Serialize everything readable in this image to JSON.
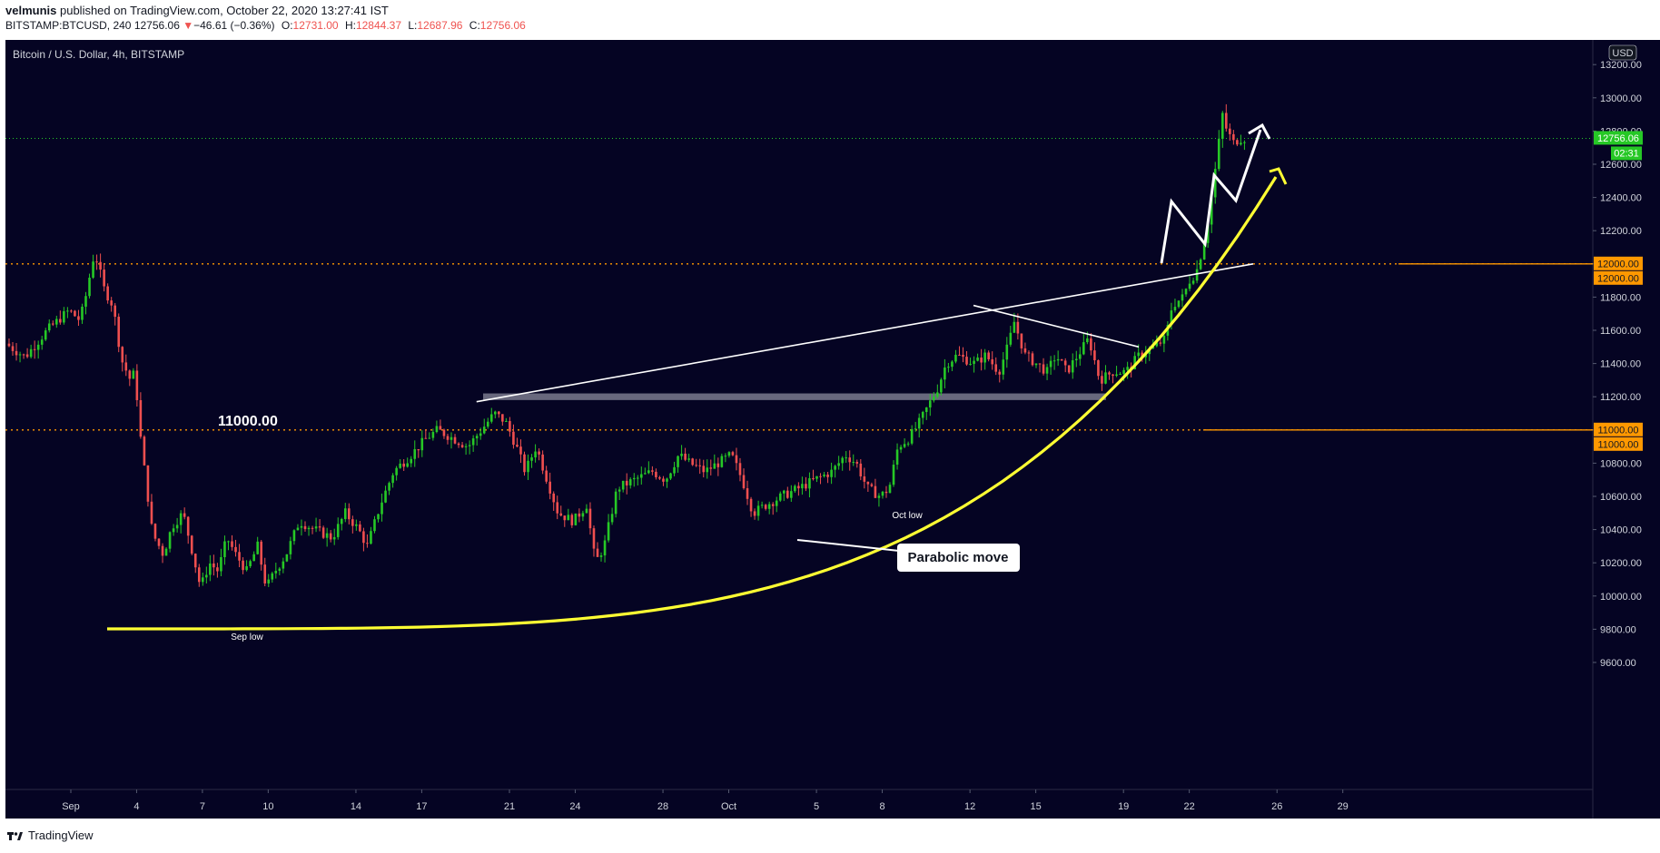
{
  "header": {
    "author": "velmunis",
    "published_text": "published on TradingView.com, October 22, 2020 13:27:41 IST",
    "symbol": "BITSTAMP:BTCUSD, 240",
    "last": "12756.06",
    "change_arrow": "▼",
    "change": "−46.61 (−0.36%)",
    "o_label": "O:",
    "o_value": "12731.00",
    "h_label": "H:",
    "h_value": "12844.37",
    "l_label": "L:",
    "l_value": "12687.96",
    "c_label": "C:",
    "c_value": "12756.06"
  },
  "footer": {
    "brand": "TradingView",
    "icon": "tradingview-logo-icon"
  },
  "colors": {
    "background": "#050423",
    "up": "#26c826",
    "down": "#ef4f4f",
    "level": "#ff9800",
    "curve": "#ffff33",
    "lines": "#ffffff",
    "price_badge": "#26c826"
  },
  "chart_data": {
    "type": "candlestick",
    "title": "Bitcoin / U.S. Dollar, 4h, BITSTAMP",
    "currency": "USD",
    "ylim": [
      9500,
      13300
    ],
    "y_ticks": [
      13200,
      13000,
      12800,
      12600,
      12400,
      12200,
      12000,
      11800,
      11600,
      11400,
      11200,
      11000,
      10800,
      10600,
      10400,
      10200,
      10000,
      9800,
      9600
    ],
    "y_tick_labels": [
      "13200.00",
      "13000.00",
      "12800.00",
      "12600.00",
      "12400.00",
      "12200.00",
      "12000.00",
      "11800.00",
      "11600.00",
      "11400.00",
      "11200.00",
      "11000.00",
      "10800.00",
      "10600.00",
      "10400.00",
      "10200.00",
      "10000.00",
      "9800.00",
      "9600.00"
    ],
    "x_ticks": [
      {
        "label": "Sep",
        "day": 0
      },
      {
        "label": "4",
        "day": 3
      },
      {
        "label": "7",
        "day": 6
      },
      {
        "label": "10",
        "day": 9
      },
      {
        "label": "14",
        "day": 13
      },
      {
        "label": "17",
        "day": 16
      },
      {
        "label": "21",
        "day": 20
      },
      {
        "label": "24",
        "day": 23
      },
      {
        "label": "28",
        "day": 27
      },
      {
        "label": "Oct",
        "day": 30
      },
      {
        "label": "5",
        "day": 34
      },
      {
        "label": "8",
        "day": 37
      },
      {
        "label": "12",
        "day": 41
      },
      {
        "label": "15",
        "day": 44
      },
      {
        "label": "19",
        "day": 48
      },
      {
        "label": "22",
        "day": 51
      },
      {
        "label": "26",
        "day": 55
      },
      {
        "label": "29",
        "day": 58
      }
    ],
    "x_domain": [
      -2.9,
      65.2
    ],
    "price_path": [
      [
        -2.9,
        11520
      ],
      [
        -2.0,
        11440
      ],
      [
        -1.0,
        11600
      ],
      [
        0.0,
        11720
      ],
      [
        0.5,
        11660
      ],
      [
        0.9,
        11880
      ],
      [
        1.0,
        12000
      ],
      [
        1.2,
        12060
      ],
      [
        1.6,
        11850
      ],
      [
        2.0,
        11750
      ],
      [
        2.4,
        11420
      ],
      [
        2.8,
        11300
      ],
      [
        3.0,
        11350
      ],
      [
        3.3,
        10900
      ],
      [
        3.5,
        10700
      ],
      [
        3.8,
        10380
      ],
      [
        4.3,
        10250
      ],
      [
        4.7,
        10420
      ],
      [
        5.2,
        10500
      ],
      [
        5.6,
        10280
      ],
      [
        6.0,
        10050
      ],
      [
        6.4,
        10200
      ],
      [
        6.8,
        10150
      ],
      [
        7.2,
        10350
      ],
      [
        7.6,
        10250
      ],
      [
        8.1,
        10150
      ],
      [
        8.6,
        10300
      ],
      [
        9.0,
        10050
      ],
      [
        9.4,
        10150
      ],
      [
        9.9,
        10250
      ],
      [
        10.5,
        10450
      ],
      [
        11.2,
        10400
      ],
      [
        12.0,
        10350
      ],
      [
        12.6,
        10500
      ],
      [
        13.2,
        10400
      ],
      [
        13.6,
        10300
      ],
      [
        14.2,
        10550
      ],
      [
        14.8,
        10750
      ],
      [
        15.6,
        10850
      ],
      [
        16.3,
        10950
      ],
      [
        16.8,
        11000
      ],
      [
        17.5,
        10950
      ],
      [
        18.2,
        10900
      ],
      [
        18.8,
        11000
      ],
      [
        19.4,
        11100
      ],
      [
        19.9,
        11050
      ],
      [
        20.4,
        10900
      ],
      [
        20.8,
        10750
      ],
      [
        21.3,
        10900
      ],
      [
        21.8,
        10700
      ],
      [
        22.3,
        10500
      ],
      [
        23.0,
        10450
      ],
      [
        23.6,
        10550
      ],
      [
        24.0,
        10200
      ],
      [
        24.4,
        10300
      ],
      [
        25.0,
        10650
      ],
      [
        25.8,
        10700
      ],
      [
        26.6,
        10750
      ],
      [
        27.2,
        10700
      ],
      [
        27.8,
        10850
      ],
      [
        28.3,
        10800
      ],
      [
        29.0,
        10750
      ],
      [
        29.6,
        10800
      ],
      [
        30.2,
        10850
      ],
      [
        30.7,
        10700
      ],
      [
        31.2,
        10500
      ],
      [
        31.8,
        10550
      ],
      [
        32.5,
        10600
      ],
      [
        33.3,
        10650
      ],
      [
        34.0,
        10700
      ],
      [
        34.8,
        10750
      ],
      [
        35.4,
        10850
      ],
      [
        35.9,
        10800
      ],
      [
        36.4,
        10650
      ],
      [
        37.0,
        10600
      ],
      [
        37.4,
        10650
      ],
      [
        37.8,
        10900
      ],
      [
        38.3,
        10950
      ],
      [
        38.8,
        11050
      ],
      [
        39.2,
        11150
      ],
      [
        39.6,
        11250
      ],
      [
        40.0,
        11400
      ],
      [
        40.5,
        11450
      ],
      [
        41.3,
        11400
      ],
      [
        41.8,
        11450
      ],
      [
        42.4,
        11350
      ],
      [
        42.8,
        11500
      ],
      [
        43.1,
        11650
      ],
      [
        43.6,
        11450
      ],
      [
        44.1,
        11400
      ],
      [
        44.6,
        11350
      ],
      [
        45.0,
        11450
      ],
      [
        45.5,
        11350
      ],
      [
        46.0,
        11450
      ],
      [
        46.5,
        11550
      ],
      [
        47.0,
        11300
      ],
      [
        47.6,
        11350
      ],
      [
        48.2,
        11350
      ],
      [
        48.8,
        11450
      ],
      [
        49.5,
        11500
      ],
      [
        50.0,
        11550
      ],
      [
        50.3,
        11750
      ],
      [
        50.8,
        11800
      ],
      [
        51.1,
        11900
      ],
      [
        51.4,
        11950
      ],
      [
        51.7,
        12100
      ],
      [
        52.0,
        12300
      ],
      [
        52.3,
        12600
      ],
      [
        52.6,
        12900
      ],
      [
        52.8,
        12800
      ],
      [
        53.1,
        12730
      ],
      [
        53.4,
        12756
      ]
    ]
  },
  "annotations": {
    "level_11000": "11000.00",
    "level_12000": "12000.00",
    "sep_low": "Sep low",
    "oct_low": "Oct low",
    "parabolic": "Parabolic move",
    "last_price": "12756.06",
    "countdown": "02:31"
  }
}
